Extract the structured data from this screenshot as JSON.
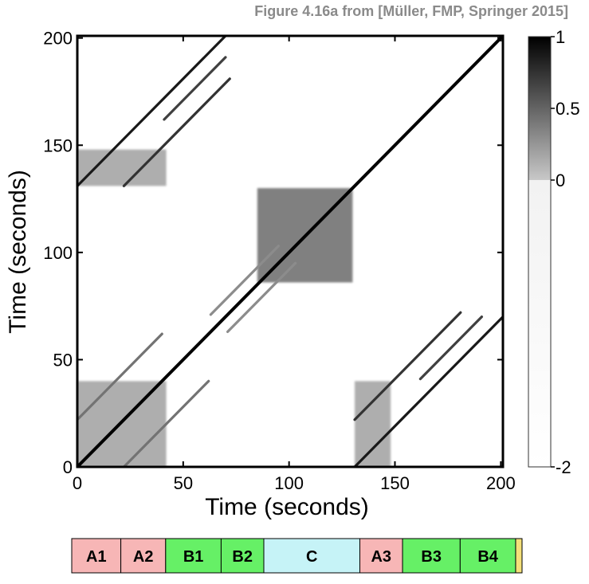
{
  "caption": "Figure 4.16a from [Müller, FMP, Springer 2015]",
  "chart_data": {
    "type": "heatmap",
    "title": "",
    "xlabel": "Time (seconds)",
    "ylabel": "Time (seconds)",
    "xlim": [
      0,
      201
    ],
    "ylim": [
      0,
      201
    ],
    "xticks": [
      0,
      50,
      100,
      150,
      200
    ],
    "yticks": [
      0,
      50,
      100,
      150,
      200
    ],
    "colorbar": {
      "range": [
        -2,
        1
      ],
      "ticks": [
        1,
        0.5,
        0,
        -2
      ],
      "tick_labels": [
        "1",
        "0.5",
        "0",
        "-2"
      ],
      "colormap": "gray (white = low, black = high)"
    },
    "diagonal_stripes": [
      {
        "x": [
          0,
          201
        ],
        "y": [
          0,
          201
        ],
        "intensity": 1.0
      },
      {
        "x": [
          0,
          70
        ],
        "y": [
          131,
          201
        ],
        "intensity": 0.9
      },
      {
        "x": [
          131,
          201
        ],
        "y": [
          0,
          70
        ],
        "intensity": 0.9
      },
      {
        "x": [
          22,
          72
        ],
        "y": [
          131,
          181
        ],
        "intensity": 0.8
      },
      {
        "x": [
          131,
          181
        ],
        "y": [
          22,
          72
        ],
        "intensity": 0.8
      },
      {
        "x": [
          41,
          70
        ],
        "y": [
          162,
          191
        ],
        "intensity": 0.75
      },
      {
        "x": [
          162,
          191
        ],
        "y": [
          41,
          70
        ],
        "intensity": 0.75
      },
      {
        "x": [
          0,
          40
        ],
        "y": [
          22,
          62
        ],
        "intensity": 0.55
      },
      {
        "x": [
          22,
          62
        ],
        "y": [
          0,
          40
        ],
        "intensity": 0.55
      },
      {
        "x": [
          63,
          95
        ],
        "y": [
          71,
          103
        ],
        "intensity": 0.45
      },
      {
        "x": [
          71,
          103
        ],
        "y": [
          63,
          95
        ],
        "intensity": 0.45
      }
    ],
    "blocks": [
      {
        "x": [
          85,
          130
        ],
        "y": [
          86,
          130
        ],
        "intensity": 0.55
      },
      {
        "x": [
          0,
          42
        ],
        "y": [
          0,
          40
        ],
        "intensity": 0.35
      },
      {
        "x": [
          131,
          148
        ],
        "y": [
          0,
          40
        ],
        "intensity": 0.35
      },
      {
        "x": [
          0,
          42
        ],
        "y": [
          131,
          148
        ],
        "intensity": 0.35
      }
    ],
    "segments": [
      {
        "label": "A1",
        "start": 0,
        "end": 23,
        "color": "#f7b6b6"
      },
      {
        "label": "A2",
        "start": 23,
        "end": 44,
        "color": "#f7b6b6"
      },
      {
        "label": "B1",
        "start": 44,
        "end": 70,
        "color": "#66f066"
      },
      {
        "label": "B2",
        "start": 70,
        "end": 90,
        "color": "#66f066"
      },
      {
        "label": "C",
        "start": 90,
        "end": 135,
        "color": "#c6f3f7"
      },
      {
        "label": "A3",
        "start": 135,
        "end": 155,
        "color": "#f7b6b6"
      },
      {
        "label": "B3",
        "start": 155,
        "end": 182,
        "color": "#66f066"
      },
      {
        "label": "B4",
        "start": 182,
        "end": 208,
        "color": "#66f066"
      },
      {
        "label": "",
        "start": 208,
        "end": 211,
        "color": "#f5e079"
      }
    ]
  }
}
